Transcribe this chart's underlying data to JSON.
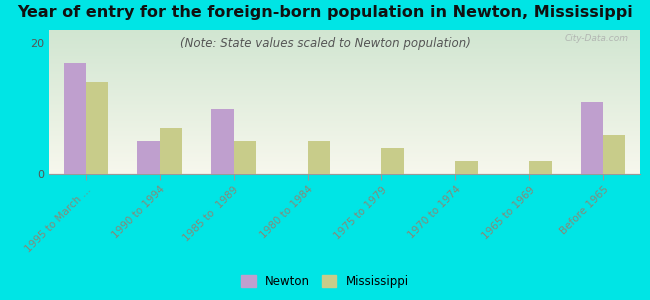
{
  "title": "Year of entry for the foreign-born population in Newton, Mississippi",
  "subtitle": "(Note: State values scaled to Newton population)",
  "categories": [
    "1995 to March ...",
    "1990 to 1994",
    "1985 to  1989",
    "1980 to 1984",
    "1975 to 1979",
    "1970 to 1974",
    "1965 to 1969",
    "Before 1965"
  ],
  "newton_values": [
    17,
    5,
    10,
    0,
    0,
    0,
    0,
    11
  ],
  "mississippi_values": [
    14,
    7,
    5,
    5,
    4,
    2,
    2,
    6
  ],
  "newton_color": "#bf9fce",
  "mississippi_color": "#c8cc8a",
  "background_color": "#00e5e5",
  "bar_width": 0.3,
  "ylim": [
    0,
    22
  ],
  "yticks": [
    0,
    20
  ],
  "watermark": "City-Data.com",
  "legend_newton": "Newton",
  "legend_mississippi": "Mississippi",
  "title_fontsize": 11.5,
  "subtitle_fontsize": 8.5,
  "tick_fontsize": 7.5,
  "ytick_fontsize": 8
}
